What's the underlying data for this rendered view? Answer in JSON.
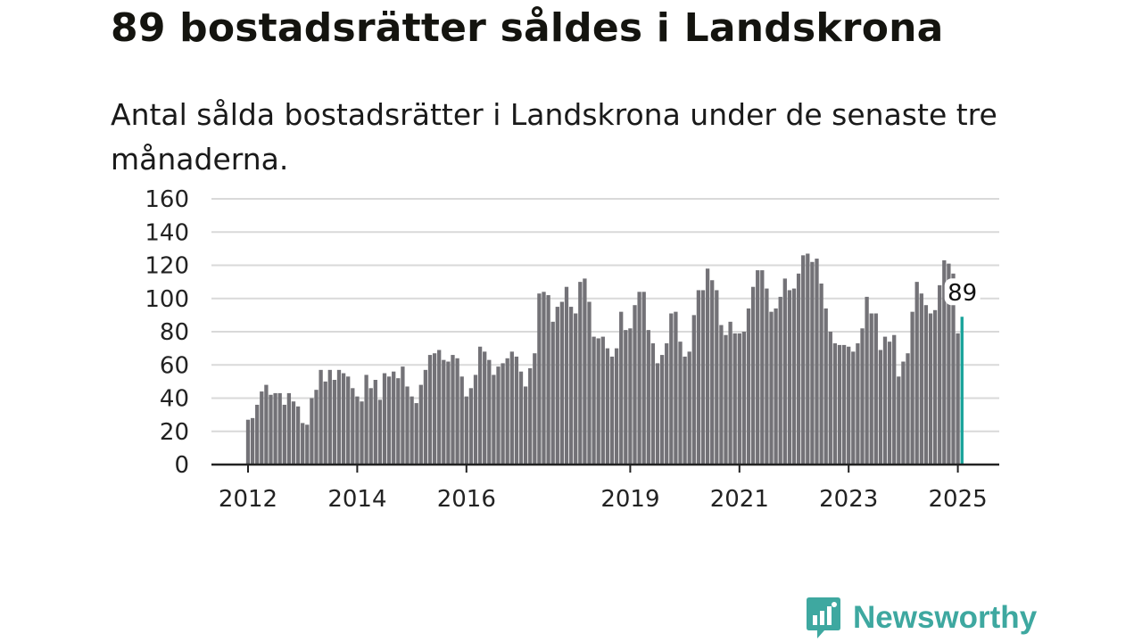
{
  "header": {
    "title": "89 bostadsrätter såldes i Landskrona",
    "subtitle": "Antal sålda bostadsrätter i Landskrona under de senaste tre månaderna."
  },
  "brand": {
    "name": "Newsworthy",
    "icon": "newsworthy-logo-icon",
    "color": "#3ea8a0"
  },
  "colors": {
    "bar": "#737277",
    "highlight": "#1aa39b",
    "grid": "#d9d9d9",
    "axis": "#222222"
  },
  "chart_data": {
    "type": "bar",
    "title": "89 bostadsrätter såldes i Landskrona",
    "subtitle": "Antal sålda bostadsrätter i Landskrona under de senaste tre månaderna.",
    "xlabel": "",
    "ylabel": "",
    "ylim": [
      0,
      160
    ],
    "y_ticks": [
      "0",
      "20",
      "40",
      "60",
      "80",
      "100",
      "120",
      "140",
      "160"
    ],
    "x_ticks": [
      {
        "label": "2012",
        "index": 0
      },
      {
        "label": "2014",
        "index": 24
      },
      {
        "label": "2016",
        "index": 48
      },
      {
        "label": "2019",
        "index": 84
      },
      {
        "label": "2021",
        "index": 108
      },
      {
        "label": "2023",
        "index": 132
      },
      {
        "label": "2025",
        "index": 156
      }
    ],
    "frequency": "monthly, rolling three-month sum",
    "start": "2012-01",
    "grid": true,
    "highlight_last": true,
    "last_label": "89",
    "values": [
      27,
      28,
      36,
      44,
      48,
      42,
      43,
      43,
      36,
      43,
      38,
      35,
      25,
      24,
      40,
      45,
      57,
      50,
      57,
      51,
      57,
      55,
      53,
      46,
      41,
      38,
      54,
      46,
      51,
      39,
      55,
      53,
      56,
      52,
      59,
      47,
      41,
      37,
      48,
      57,
      66,
      67,
      69,
      63,
      62,
      66,
      64,
      53,
      41,
      46,
      54,
      71,
      68,
      63,
      54,
      59,
      61,
      64,
      68,
      65,
      56,
      47,
      58,
      67,
      103,
      104,
      102,
      86,
      95,
      98,
      107,
      95,
      91,
      110,
      112,
      98,
      77,
      76,
      77,
      70,
      65,
      70,
      92,
      81,
      82,
      96,
      104,
      104,
      81,
      73,
      61,
      66,
      73,
      91,
      92,
      74,
      65,
      68,
      90,
      105,
      105,
      118,
      111,
      105,
      84,
      78,
      86,
      79,
      79,
      80,
      94,
      107,
      117,
      117,
      106,
      92,
      94,
      101,
      112,
      105,
      106,
      115,
      126,
      127,
      122,
      124,
      109,
      94,
      80,
      73,
      72,
      72,
      71,
      68,
      73,
      82,
      101,
      91,
      91,
      69,
      77,
      74,
      78,
      53,
      62,
      67,
      92,
      110,
      103,
      96,
      91,
      93,
      108,
      123,
      121,
      115,
      79,
      89
    ]
  }
}
